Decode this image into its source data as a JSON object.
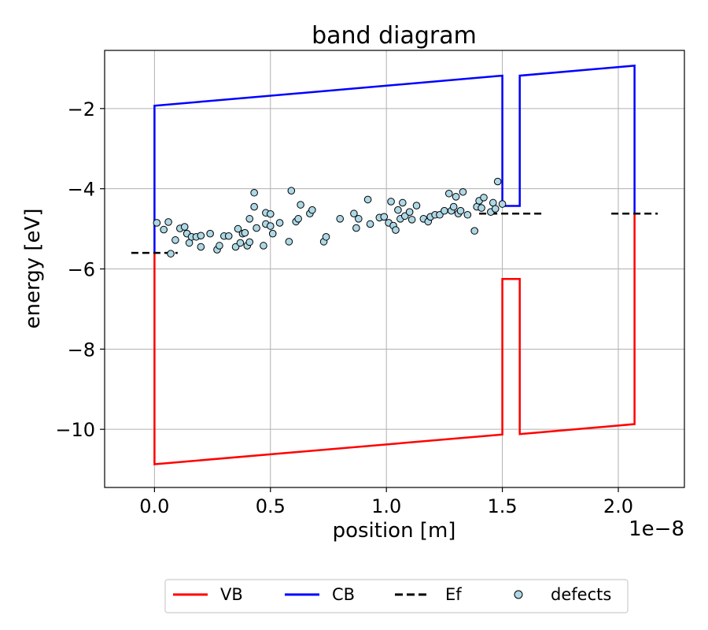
{
  "chart_data": {
    "type": "line",
    "title": "band diagram",
    "xlabel": "position [m]",
    "ylabel": "energy [eV]",
    "x_offset_label": "1e−8",
    "x_unit_scale": 1e-08,
    "xlim": [
      -0.215,
      2.285
    ],
    "ylim": [
      -11.45,
      -0.55
    ],
    "xticks": [
      0.0,
      0.5,
      1.0,
      1.5,
      2.0
    ],
    "xtick_labels": [
      "0.0",
      "0.5",
      "1.0",
      "1.5",
      "2.0"
    ],
    "yticks": [
      -2,
      -4,
      -6,
      -8,
      -10
    ],
    "ytick_labels": [
      "−2",
      "−4",
      "−6",
      "−8",
      "−10"
    ],
    "grid": true,
    "legend_position": "bottom-center-outside",
    "series": [
      {
        "name": "VB",
        "color": "#ff0000",
        "style": "solid",
        "x": [
          0.0,
          0.0,
          1.5,
          1.5,
          1.575,
          1.575,
          2.07,
          2.07
        ],
        "y": [
          -5.6,
          -10.87,
          -10.13,
          -6.25,
          -6.25,
          -10.12,
          -9.87,
          -4.62
        ]
      },
      {
        "name": "CB",
        "color": "#0000ff",
        "style": "solid",
        "x": [
          0.0,
          0.0,
          1.5,
          1.5,
          1.575,
          1.575,
          2.07,
          2.07
        ],
        "y": [
          -5.6,
          -1.93,
          -1.18,
          -4.43,
          -4.43,
          -1.18,
          -0.93,
          -4.62
        ]
      },
      {
        "name": "Ef",
        "color": "#000000",
        "style": "dashed",
        "segments": [
          {
            "x": [
              -0.1,
              0.1
            ],
            "y": [
              -5.6,
              -5.6
            ]
          },
          {
            "x": [
              1.4,
              1.68
            ],
            "y": [
              -4.62,
              -4.62
            ]
          },
          {
            "x": [
              1.97,
              2.17
            ],
            "y": [
              -4.62,
              -4.62
            ]
          }
        ]
      },
      {
        "name": "defects",
        "type": "scatter",
        "color": "#add8e6",
        "edge_color": "#000000",
        "x": [
          0.01,
          0.04,
          0.07,
          0.06,
          0.09,
          0.11,
          0.13,
          0.14,
          0.15,
          0.16,
          0.18,
          0.2,
          0.2,
          0.24,
          0.27,
          0.28,
          0.3,
          0.32,
          0.35,
          0.36,
          0.37,
          0.38,
          0.39,
          0.4,
          0.41,
          0.41,
          0.43,
          0.44,
          0.47,
          0.48,
          0.48,
          0.5,
          0.5,
          0.51,
          0.54,
          0.58,
          0.59,
          0.61,
          0.63,
          0.67,
          0.68,
          0.73,
          0.74,
          0.8,
          0.86,
          0.87,
          0.88,
          0.92,
          0.93,
          0.97,
          0.99,
          1.01,
          1.02,
          1.03,
          1.04,
          1.05,
          1.06,
          1.07,
          1.08,
          1.1,
          1.11,
          1.13,
          1.16,
          1.18,
          1.19,
          1.21,
          1.23,
          1.25,
          1.27,
          1.28,
          1.29,
          1.3,
          1.31,
          1.32,
          1.33,
          1.35,
          1.38,
          1.39,
          1.4,
          1.41,
          1.42,
          1.45,
          1.46,
          1.47,
          1.48,
          1.5,
          0.43,
          0.62
        ],
        "y": [
          -4.85,
          -5.02,
          -5.62,
          -4.83,
          -5.28,
          -4.99,
          -4.95,
          -5.12,
          -5.35,
          -5.2,
          -5.2,
          -5.45,
          -5.17,
          -5.12,
          -5.52,
          -5.42,
          -5.18,
          -5.18,
          -5.45,
          -5.0,
          -5.35,
          -5.12,
          -5.1,
          -5.42,
          -5.33,
          -4.75,
          -4.45,
          -4.98,
          -5.42,
          -4.88,
          -4.6,
          -4.63,
          -4.93,
          -5.12,
          -4.85,
          -5.32,
          -4.05,
          -4.82,
          -4.4,
          -4.62,
          -4.53,
          -5.32,
          -5.2,
          -4.75,
          -4.62,
          -4.98,
          -4.75,
          -4.27,
          -4.88,
          -4.72,
          -4.7,
          -4.85,
          -4.32,
          -4.92,
          -5.03,
          -4.53,
          -4.75,
          -4.35,
          -4.68,
          -4.58,
          -4.77,
          -4.42,
          -4.75,
          -4.82,
          -4.7,
          -4.65,
          -4.65,
          -4.55,
          -4.12,
          -4.55,
          -4.45,
          -4.2,
          -4.62,
          -4.55,
          -4.08,
          -4.65,
          -5.05,
          -4.45,
          -4.3,
          -4.48,
          -4.22,
          -4.58,
          -4.35,
          -4.5,
          -3.82,
          -4.38,
          -4.1,
          -4.75
        ]
      }
    ]
  }
}
